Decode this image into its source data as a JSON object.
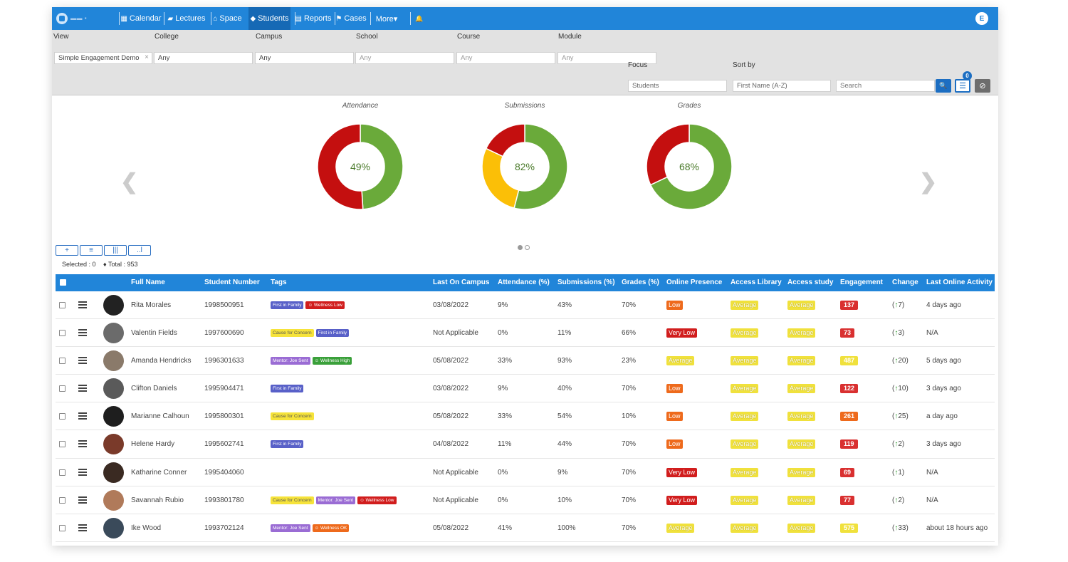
{
  "nav": {
    "items": [
      {
        "label": "Calendar",
        "icon": "calendar-icon",
        "glyph": "▦"
      },
      {
        "label": "Lectures",
        "icon": "book-icon",
        "glyph": "▰"
      },
      {
        "label": "Space",
        "icon": "building-icon",
        "glyph": "⌂"
      },
      {
        "label": "Students",
        "icon": "graduation-cap-icon",
        "glyph": "◆"
      },
      {
        "label": "Reports",
        "icon": "file-icon",
        "glyph": "▤"
      },
      {
        "label": "Cases",
        "icon": "flag-icon",
        "glyph": "⚑"
      },
      {
        "label": "More▾",
        "icon": "",
        "glyph": ""
      }
    ],
    "bell_glyph": "🔔",
    "avatar": "E"
  },
  "filters": {
    "view": {
      "label": "View",
      "value": "Simple Engagement Demo",
      "clear": "×"
    },
    "college": {
      "label": "College",
      "value": "Any"
    },
    "campus": {
      "label": "Campus",
      "value": "Any"
    },
    "school": {
      "label": "School",
      "placeholder": "Any"
    },
    "course": {
      "label": "Course",
      "placeholder": "Any"
    },
    "module": {
      "label": "Module",
      "placeholder": "Any"
    },
    "focus": {
      "label": "Focus",
      "value": "Students"
    },
    "sort": {
      "label": "Sort by",
      "value": "First Name (A-Z)"
    },
    "search": {
      "placeholder": "Search"
    },
    "filter_count": "0",
    "search_btn": "🔍",
    "filter_btn": "☰",
    "reset_btn": "⊘"
  },
  "charts_labels": {
    "prev": "❮",
    "next": "❯"
  },
  "chart_data": [
    {
      "type": "pie",
      "title": "Attendance",
      "center_label": "49%",
      "values": [
        49,
        51
      ],
      "colors": [
        "#6aaa3a",
        "#c40f0f"
      ]
    },
    {
      "type": "pie",
      "title": "Submissions",
      "center_label": "82%",
      "values": [
        54,
        28,
        18
      ],
      "colors": [
        "#6aaa3a",
        "#fbbf07",
        "#c40f0f"
      ]
    },
    {
      "type": "pie",
      "title": "Grades",
      "center_label": "68%",
      "values": [
        68,
        32
      ],
      "colors": [
        "#6aaa3a",
        "#c40f0f"
      ]
    }
  ],
  "toolbar": [
    "+",
    "≡",
    "|||",
    "..l"
  ],
  "counts": {
    "selected": "Selected : 0",
    "total": "♦ Total : 953"
  },
  "table": {
    "columns": [
      "Full Name",
      "Student Number",
      "Tags",
      "Last On Campus",
      "Attendance (%)",
      "Submissions (%)",
      "Grades (%)",
      "Online Presence",
      "Access Library",
      "Access study",
      "Engagement",
      "Change",
      "Last Online Activity"
    ],
    "rows": [
      {
        "name": "Rita Morales",
        "number": "1998500951",
        "tags": [
          {
            "t": "First in Family",
            "c": "#5860c8"
          },
          {
            "t": "☺ Wellness Low",
            "c": "#d11d1d"
          }
        ],
        "campus": "03/08/2022",
        "att": "9%",
        "sub": "43%",
        "grade": "70%",
        "online": {
          "t": "Low",
          "c": "#ee6a1c"
        },
        "lib": "Average",
        "study": "Average",
        "eng": {
          "t": "137",
          "c": "#d93030"
        },
        "chg": "(↑7)",
        "last": "4 days ago",
        "avc": "#222"
      },
      {
        "name": "Valentin Fields",
        "number": "1997600690",
        "tags": [
          {
            "t": "Cause for Concern",
            "c": "#f6e33a",
            "dark": true
          },
          {
            "t": "First in Family",
            "c": "#5860c8"
          }
        ],
        "campus": "Not Applicable",
        "att": "0%",
        "sub": "11%",
        "grade": "66%",
        "online": {
          "t": "Very Low",
          "c": "#d11d1d"
        },
        "lib": "Average",
        "study": "Average",
        "eng": {
          "t": "73",
          "c": "#d93030"
        },
        "chg": "(↑3)",
        "last": "N/A",
        "avc": "#6b6b6b"
      },
      {
        "name": "Amanda Hendricks",
        "number": "1996301633",
        "tags": [
          {
            "t": "Mentor: Joe Sent",
            "c": "#9a6cd4"
          },
          {
            "t": "☺ Wellness High",
            "c": "#3aa03a"
          }
        ],
        "campus": "05/08/2022",
        "att": "33%",
        "sub": "93%",
        "grade": "23%",
        "online": {
          "t": "Average",
          "c": "#f0e13c",
          "avg": true
        },
        "lib": "Average",
        "study": "Average",
        "eng": {
          "t": "487",
          "c": "#f0e13c"
        },
        "chg": "(↑20)",
        "last": "5 days ago",
        "avc": "#8a7a6a"
      },
      {
        "name": "Clifton Daniels",
        "number": "1995904471",
        "tags": [
          {
            "t": "First in Family",
            "c": "#5860c8"
          }
        ],
        "campus": "03/08/2022",
        "att": "9%",
        "sub": "40%",
        "grade": "70%",
        "online": {
          "t": "Low",
          "c": "#ee6a1c"
        },
        "lib": "Average",
        "study": "Average",
        "eng": {
          "t": "122",
          "c": "#d93030"
        },
        "chg": "(↑10)",
        "last": "3 days ago",
        "avc": "#5a5a5a"
      },
      {
        "name": "Marianne Calhoun",
        "number": "1995800301",
        "tags": [
          {
            "t": "Cause for Concern",
            "c": "#f6e33a",
            "dark": true
          }
        ],
        "campus": "05/08/2022",
        "att": "33%",
        "sub": "54%",
        "grade": "10%",
        "online": {
          "t": "Low",
          "c": "#ee6a1c"
        },
        "lib": "Average",
        "study": "Average",
        "eng": {
          "t": "261",
          "c": "#ee6a1c"
        },
        "chg": "(↑25)",
        "last": "a day ago",
        "avc": "#1e1e1e"
      },
      {
        "name": "Helene Hardy",
        "number": "1995602741",
        "tags": [
          {
            "t": "First in Family",
            "c": "#5860c8"
          }
        ],
        "campus": "04/08/2022",
        "att": "11%",
        "sub": "44%",
        "grade": "70%",
        "online": {
          "t": "Low",
          "c": "#ee6a1c"
        },
        "lib": "Average",
        "study": "Average",
        "eng": {
          "t": "119",
          "c": "#d93030"
        },
        "chg": "(↑2)",
        "last": "3 days ago",
        "avc": "#7a3a2a"
      },
      {
        "name": "Katharine Conner",
        "number": "1995404060",
        "tags": [],
        "campus": "Not Applicable",
        "att": "0%",
        "sub": "9%",
        "grade": "70%",
        "online": {
          "t": "Very Low",
          "c": "#d11d1d"
        },
        "lib": "Average",
        "study": "Average",
        "eng": {
          "t": "69",
          "c": "#d93030"
        },
        "chg": "(↑1)",
        "last": "N/A",
        "avc": "#3a2a22"
      },
      {
        "name": "Savannah Rubio",
        "number": "1993801780",
        "tags": [
          {
            "t": "Cause for Concern",
            "c": "#f6e33a",
            "dark": true
          },
          {
            "t": "Mentor: Joe Sent",
            "c": "#9a6cd4"
          },
          {
            "t": "☺ Wellness Low",
            "c": "#d11d1d"
          }
        ],
        "campus": "Not Applicable",
        "att": "0%",
        "sub": "10%",
        "grade": "70%",
        "online": {
          "t": "Very Low",
          "c": "#d11d1d"
        },
        "lib": "Average",
        "study": "Average",
        "eng": {
          "t": "77",
          "c": "#d93030"
        },
        "chg": "(↑2)",
        "last": "N/A",
        "avc": "#b07a5a"
      },
      {
        "name": "Ike Wood",
        "number": "1993702124",
        "tags": [
          {
            "t": "Mentor: Joe Sent",
            "c": "#9a6cd4"
          },
          {
            "t": "☺ Wellness OK",
            "c": "#ee6a1c"
          }
        ],
        "campus": "05/08/2022",
        "att": "41%",
        "sub": "100%",
        "grade": "70%",
        "online": {
          "t": "Average",
          "c": "#f0e13c",
          "avg": true
        },
        "lib": "Average",
        "study": "Average",
        "eng": {
          "t": "575",
          "c": "#f0e13c"
        },
        "chg": "(↑33)",
        "last": "about 18 hours ago",
        "avc": "#3a4a5a"
      }
    ]
  }
}
